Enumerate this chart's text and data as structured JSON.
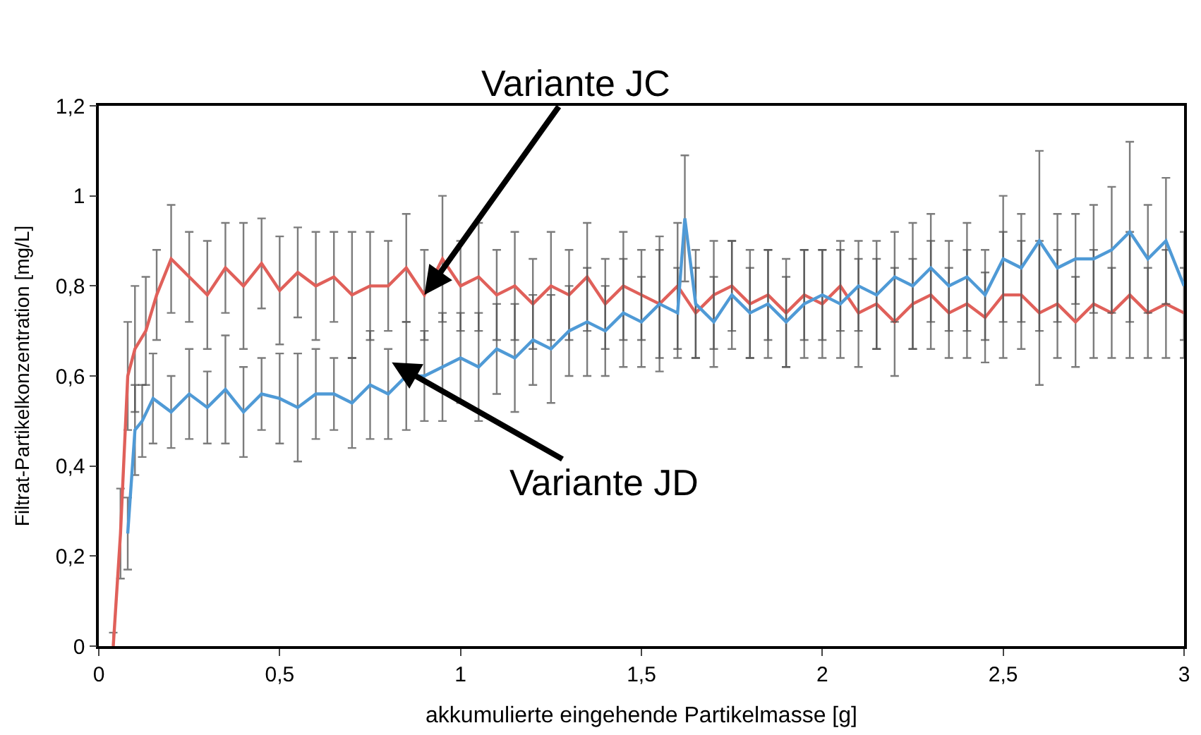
{
  "chart_data": {
    "type": "line",
    "xlabel": "akkumulierte eingehende Partikelmasse [g]",
    "ylabel": "Filtrat-Partikelkonzentration [mg/L]",
    "xlim": [
      0,
      3
    ],
    "ylim": [
      0,
      1.2
    ],
    "xticks": [
      0,
      {
        "value": 0.5,
        "label": "0,5"
      },
      1,
      {
        "value": 1.5,
        "label": "1,5"
      },
      2,
      {
        "value": 2.5,
        "label": "2,5"
      },
      3
    ],
    "yticks": [
      0,
      {
        "value": 0.2,
        "label": "0,2"
      },
      {
        "value": 0.4,
        "label": "0,4"
      },
      {
        "value": 0.6,
        "label": "0,6"
      },
      {
        "value": 0.8,
        "label": "0,8"
      },
      1,
      {
        "value": 1.2,
        "label": "1,2"
      }
    ],
    "grid": false,
    "marker": "none",
    "line_style": "solid",
    "annotations": [
      {
        "text": "Variante JC",
        "x": 0.9,
        "y": 0.78
      },
      {
        "text": "Variante JD",
        "x": 0.81,
        "y": 0.63
      }
    ],
    "series": [
      {
        "color": "#e0605a",
        "x": [
          0.04,
          0.06,
          0.08,
          0.1,
          0.13,
          0.16,
          0.2,
          0.25,
          0.3,
          0.35,
          0.4,
          0.45,
          0.5,
          0.55,
          0.6,
          0.65,
          0.7,
          0.75,
          0.8,
          0.85,
          0.9,
          0.95,
          1.0,
          1.05,
          1.1,
          1.15,
          1.2,
          1.25,
          1.3,
          1.35,
          1.4,
          1.45,
          1.5,
          1.55,
          1.6,
          1.65,
          1.7,
          1.75,
          1.8,
          1.85,
          1.9,
          1.95,
          2.0,
          2.05,
          2.1,
          2.15,
          2.2,
          2.25,
          2.3,
          2.35,
          2.4,
          2.45,
          2.5,
          2.55,
          2.6,
          2.65,
          2.7,
          2.75,
          2.8,
          2.85,
          2.9,
          2.95,
          3.0
        ],
        "values": [
          0.0,
          0.25,
          0.6,
          0.66,
          0.7,
          0.78,
          0.86,
          0.82,
          0.78,
          0.84,
          0.8,
          0.85,
          0.79,
          0.83,
          0.8,
          0.82,
          0.78,
          0.8,
          0.8,
          0.84,
          0.78,
          0.86,
          0.8,
          0.82,
          0.78,
          0.8,
          0.76,
          0.8,
          0.78,
          0.82,
          0.76,
          0.8,
          0.78,
          0.76,
          0.8,
          0.74,
          0.78,
          0.8,
          0.76,
          0.78,
          0.74,
          0.78,
          0.76,
          0.8,
          0.74,
          0.76,
          0.72,
          0.76,
          0.78,
          0.74,
          0.76,
          0.73,
          0.78,
          0.78,
          0.74,
          0.76,
          0.72,
          0.76,
          0.74,
          0.78,
          0.74,
          0.76,
          0.74
        ],
        "errors": [
          0.03,
          0.1,
          0.12,
          0.14,
          0.12,
          0.1,
          0.12,
          0.1,
          0.12,
          0.1,
          0.14,
          0.1,
          0.12,
          0.1,
          0.12,
          0.1,
          0.14,
          0.12,
          0.1,
          0.12,
          0.1,
          0.14,
          0.1,
          0.12,
          0.1,
          0.12,
          0.1,
          0.12,
          0.1,
          0.12,
          0.1,
          0.12,
          0.1,
          0.12,
          0.14,
          0.1,
          0.12,
          0.1,
          0.12,
          0.1,
          0.12,
          0.1,
          0.12,
          0.1,
          0.12,
          0.1,
          0.12,
          0.1,
          0.12,
          0.1,
          0.12,
          0.1,
          0.14,
          0.12,
          0.16,
          0.12,
          0.1,
          0.12,
          0.1,
          0.14,
          0.1,
          0.12,
          0.1
        ]
      },
      {
        "color": "#4f9ad6",
        "x": [
          0.08,
          0.1,
          0.12,
          0.15,
          0.2,
          0.25,
          0.3,
          0.35,
          0.4,
          0.45,
          0.5,
          0.55,
          0.6,
          0.65,
          0.7,
          0.75,
          0.8,
          0.85,
          0.9,
          0.95,
          1.0,
          1.05,
          1.1,
          1.15,
          1.2,
          1.25,
          1.3,
          1.35,
          1.4,
          1.45,
          1.5,
          1.55,
          1.6,
          1.62,
          1.65,
          1.7,
          1.75,
          1.8,
          1.85,
          1.9,
          1.95,
          2.0,
          2.05,
          2.1,
          2.15,
          2.2,
          2.25,
          2.3,
          2.35,
          2.4,
          2.45,
          2.5,
          2.55,
          2.6,
          2.65,
          2.7,
          2.75,
          2.8,
          2.85,
          2.9,
          2.95,
          3.0
        ],
        "values": [
          0.25,
          0.48,
          0.5,
          0.55,
          0.52,
          0.56,
          0.53,
          0.57,
          0.52,
          0.56,
          0.55,
          0.53,
          0.56,
          0.56,
          0.54,
          0.58,
          0.56,
          0.6,
          0.6,
          0.62,
          0.64,
          0.62,
          0.66,
          0.64,
          0.68,
          0.66,
          0.7,
          0.72,
          0.7,
          0.74,
          0.72,
          0.76,
          0.74,
          0.95,
          0.76,
          0.72,
          0.78,
          0.74,
          0.76,
          0.72,
          0.76,
          0.78,
          0.76,
          0.8,
          0.78,
          0.82,
          0.8,
          0.84,
          0.8,
          0.82,
          0.78,
          0.86,
          0.84,
          0.9,
          0.84,
          0.86,
          0.86,
          0.88,
          0.92,
          0.86,
          0.9,
          0.8
        ],
        "errors": [
          0.08,
          0.1,
          0.08,
          0.1,
          0.08,
          0.1,
          0.08,
          0.12,
          0.1,
          0.08,
          0.1,
          0.12,
          0.1,
          0.08,
          0.1,
          0.12,
          0.1,
          0.12,
          0.1,
          0.12,
          0.1,
          0.12,
          0.1,
          0.12,
          0.1,
          0.12,
          0.1,
          0.12,
          0.1,
          0.12,
          0.1,
          0.15,
          0.1,
          0.14,
          0.12,
          0.1,
          0.12,
          0.1,
          0.12,
          0.1,
          0.12,
          0.1,
          0.12,
          0.1,
          0.12,
          0.1,
          0.14,
          0.12,
          0.1,
          0.12,
          0.1,
          0.14,
          0.12,
          0.2,
          0.12,
          0.1,
          0.12,
          0.14,
          0.2,
          0.12,
          0.14,
          0.12
        ]
      }
    ]
  }
}
